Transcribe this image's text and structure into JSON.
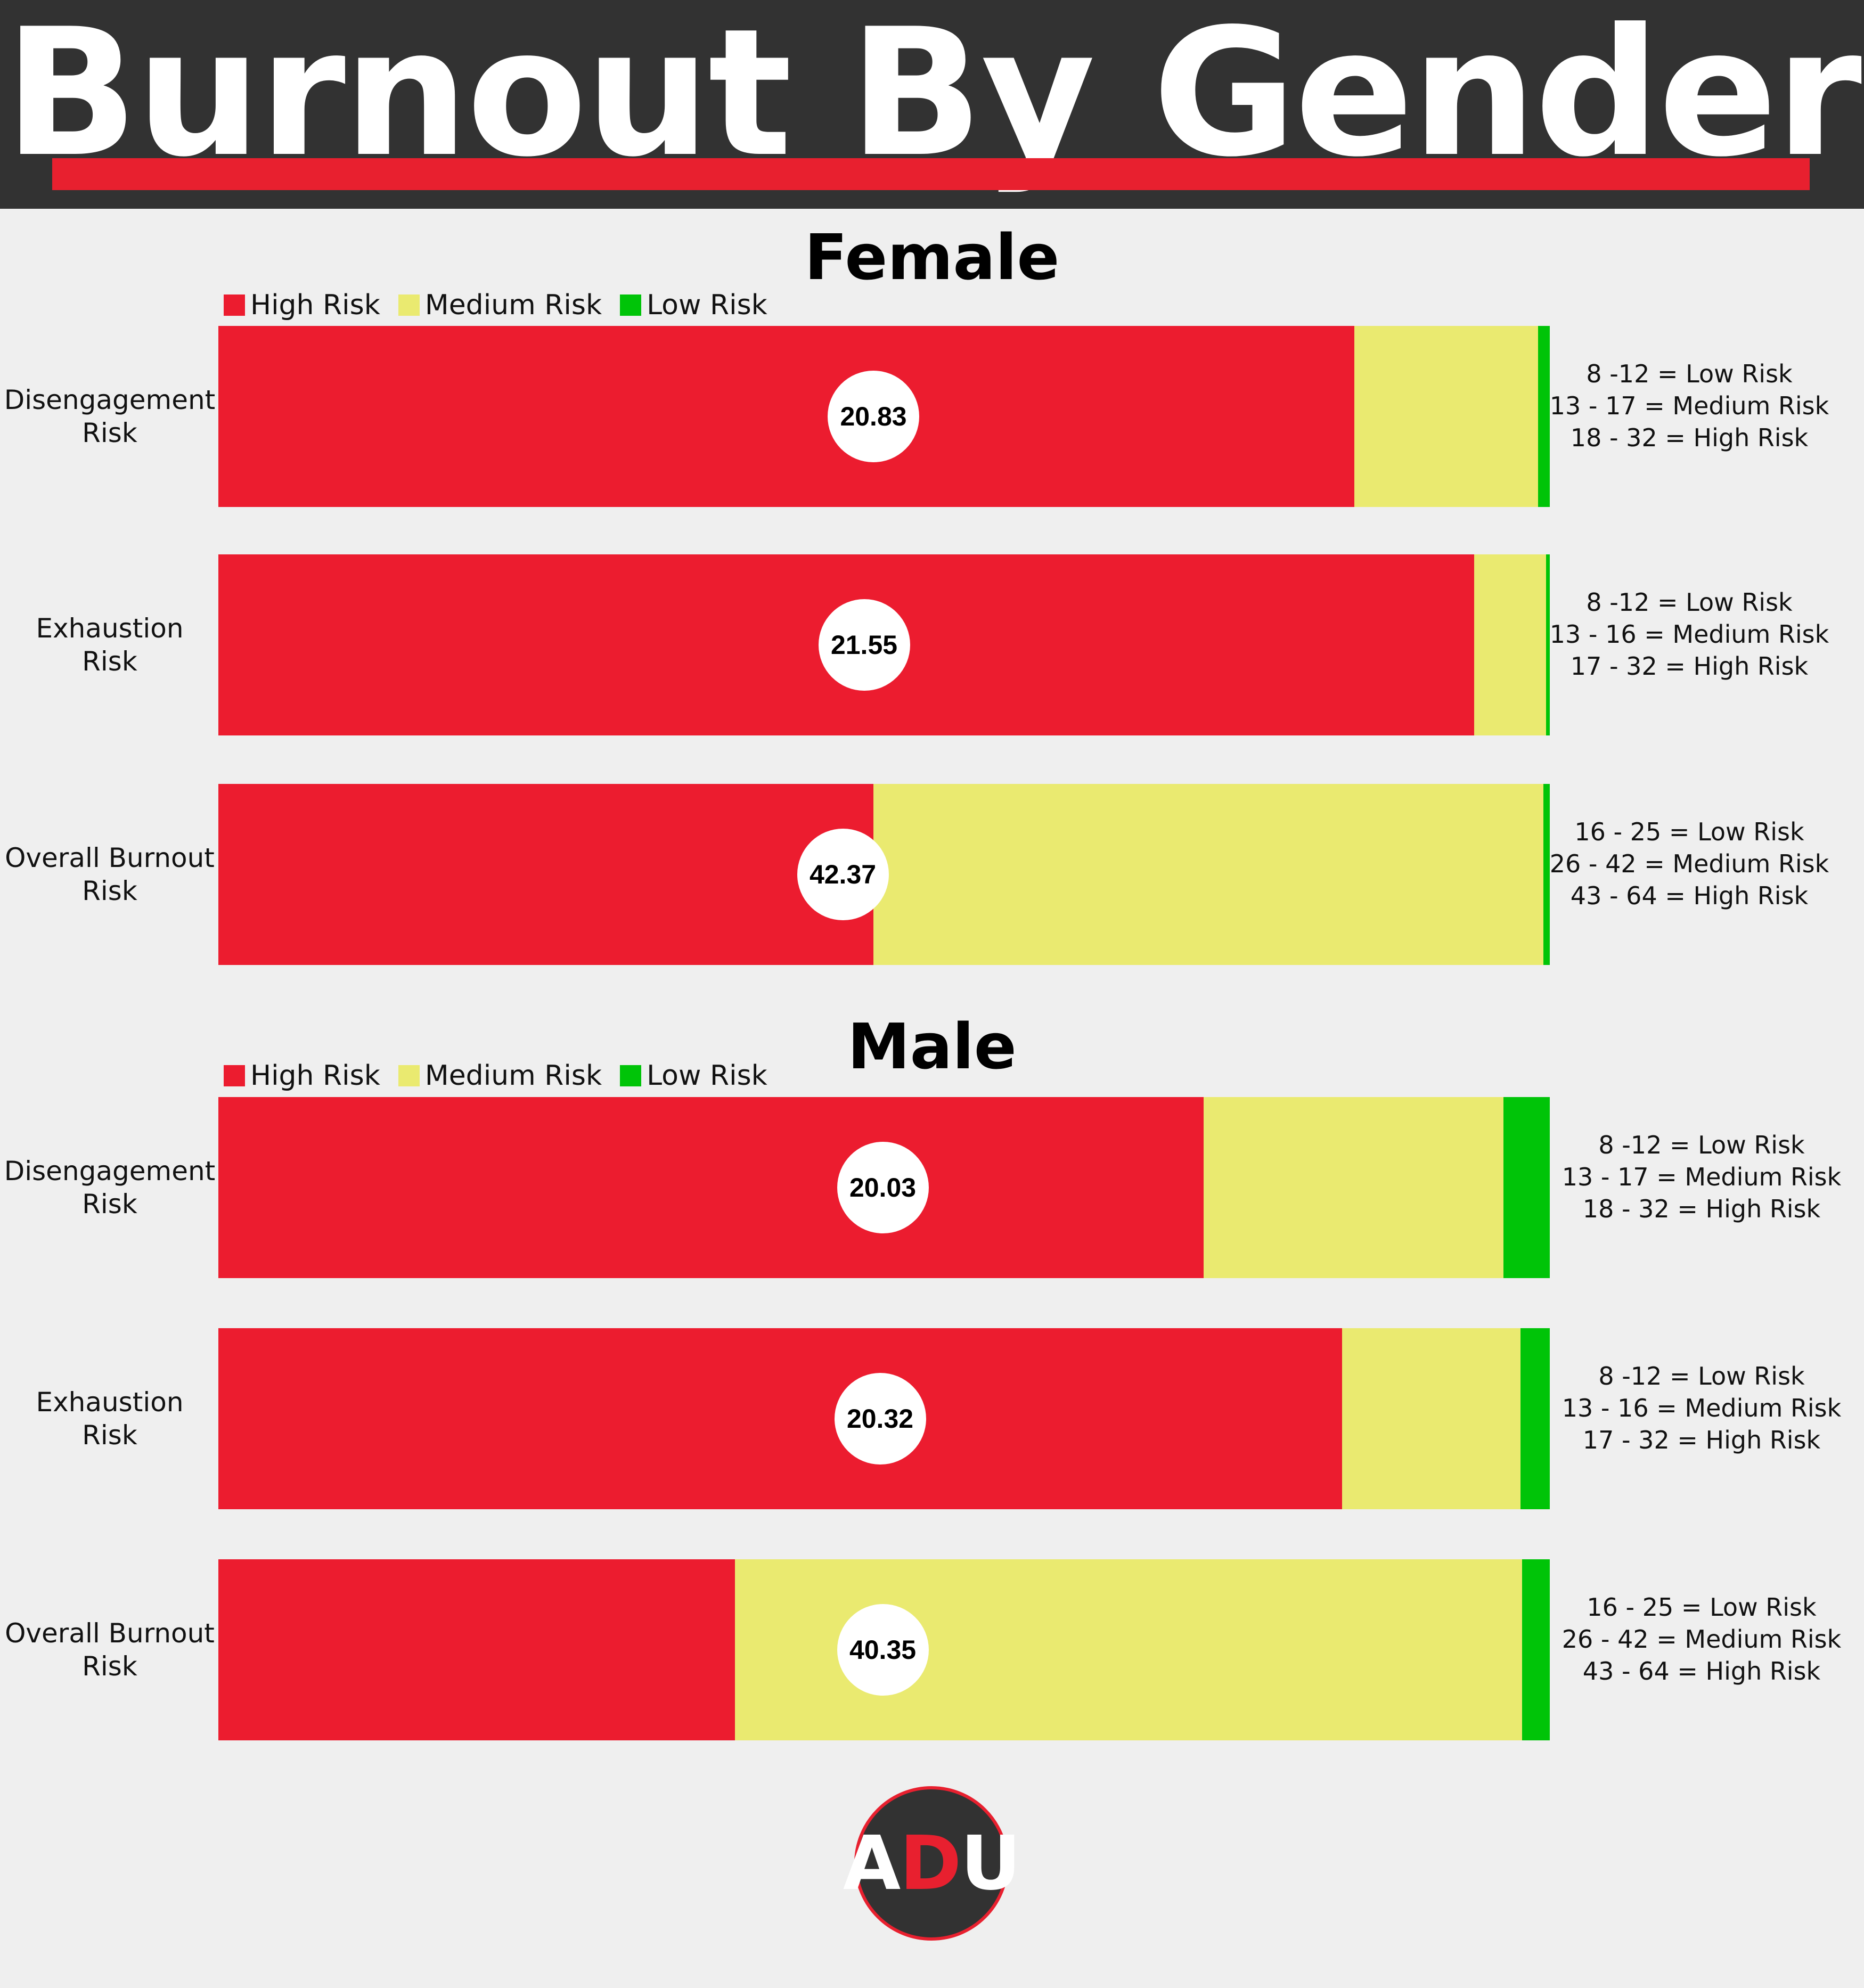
{
  "title": "Burnout By Gender",
  "colors": {
    "high": "#ec1c2f",
    "medium": "#eaea70",
    "low": "#00c408",
    "header_bg": "#323232",
    "accent": "#e8202f"
  },
  "legend": [
    {
      "label": "High Risk",
      "key": "high"
    },
    {
      "label": "Medium Risk",
      "key": "medium"
    },
    {
      "label": "Low Risk",
      "key": "low"
    }
  ],
  "chart_data": {
    "type": "bar",
    "stacked": true,
    "orientation": "horizontal",
    "panels": [
      {
        "title": "Female",
        "rows": [
          {
            "label_lines": [
              "Disengagement",
              "Risk"
            ],
            "value": "20.83",
            "high": 85.3,
            "medium": 13.8,
            "low": 0.9,
            "scale": [
              "8 -12 = Low Risk",
              "13 - 17 = Medium Risk",
              "18 - 32 = High Risk"
            ]
          },
          {
            "label_lines": [
              "Exhaustion",
              "Risk"
            ],
            "value": "21.55",
            "high": 94.3,
            "medium": 5.4,
            "low": 0.3,
            "scale": [
              "8 -12 = Low Risk",
              "13 - 16 = Medium Risk",
              "17 - 32 = High Risk"
            ]
          },
          {
            "label_lines": [
              "Overall Burnout",
              "Risk"
            ],
            "value": "42.37",
            "high": 49.2,
            "medium": 50.3,
            "low": 0.5,
            "scale": [
              "16 - 25 = Low Risk",
              "26 - 42 = Medium Risk",
              "43 - 64 = High Risk"
            ]
          }
        ]
      },
      {
        "title": "Male",
        "rows": [
          {
            "label_lines": [
              "Disengagement",
              "Risk"
            ],
            "value": "20.03",
            "high": 74.0,
            "medium": 22.5,
            "low": 3.5,
            "scale": [
              "8 -12 = Low Risk",
              "13 - 17 = Medium Risk",
              "18 - 32 = High Risk"
            ]
          },
          {
            "label_lines": [
              "Exhaustion",
              "Risk"
            ],
            "value": "20.32",
            "high": 84.4,
            "medium": 13.4,
            "low": 2.2,
            "scale": [
              "8 -12 = Low Risk",
              "13 - 16 = Medium Risk",
              "17 - 32 = High Risk"
            ]
          },
          {
            "label_lines": [
              "Overall Burnout",
              "Risk"
            ],
            "value": "40.35",
            "high": 38.8,
            "medium": 59.1,
            "low": 2.1,
            "scale": [
              "16 - 25 = Low Risk",
              "26 - 42 = Medium Risk",
              "43 - 64 = High Risk"
            ]
          }
        ]
      }
    ]
  },
  "logo": {
    "letters": [
      "A",
      "D",
      "U"
    ],
    "colors": [
      "#ffffff",
      "#e8202f",
      "#ffffff"
    ]
  }
}
